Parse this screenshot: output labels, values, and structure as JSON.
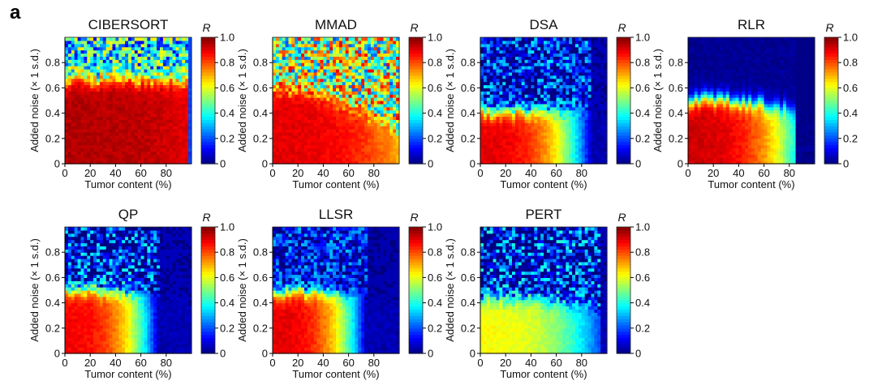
{
  "figure": {
    "panel_label": "a"
  },
  "colors": {
    "jet": [
      "#00007f",
      "#0000ff",
      "#007fff",
      "#00ffff",
      "#7fff7f",
      "#ffff00",
      "#ff7f00",
      "#ff0000",
      "#7f0000"
    ]
  },
  "chart_data": [
    {
      "type": "heatmap",
      "title": "CIBERSORT",
      "xlabel": "Tumor content (%)",
      "ylabel": "Added noise (× 1 s.d.)",
      "xlim": [
        0,
        100
      ],
      "ylim": [
        0,
        1
      ],
      "xticks": [
        "0",
        "20",
        "40",
        "60",
        "80"
      ],
      "yticks": [
        "0",
        "0.2",
        "0.4",
        "0.6",
        "0.8"
      ],
      "colorbar": {
        "label": "R",
        "range": [
          0,
          1
        ],
        "ticks": [
          "0",
          "0.2",
          "0.4",
          "0.6",
          "0.8",
          "1.0"
        ]
      },
      "pattern": {
        "boundary_noise": 0.67,
        "boundary_slope": 0.0,
        "edge_tumor": 97,
        "high_R": 0.95,
        "high_R_at_max_tumor": 0.9,
        "low_R": 0.38,
        "speckle": 0.28
      }
    },
    {
      "type": "heatmap",
      "title": "MMAD",
      "xlabel": "Tumor content (%)",
      "ylabel": "Added noise (× 1 s.d.)",
      "xlim": [
        0,
        100
      ],
      "ylim": [
        0,
        1
      ],
      "xticks": [
        "0",
        "20",
        "40",
        "60",
        "80"
      ],
      "yticks": [
        "0",
        "0.2",
        "0.4",
        "0.6",
        "0.8"
      ],
      "colorbar": {
        "label": "R",
        "range": [
          0,
          1
        ],
        "ticks": [
          "0",
          "0.2",
          "0.4",
          "0.6",
          "0.8",
          "1.0"
        ]
      },
      "pattern": {
        "boundary_noise": 0.6,
        "boundary_slope": -0.35,
        "edge_tumor": 100,
        "high_R": 0.9,
        "high_R_at_max_tumor": 0.7,
        "low_R": 0.55,
        "speckle": 0.35
      }
    },
    {
      "type": "heatmap",
      "title": "DSA",
      "xlabel": "Tumor content (%)",
      "ylabel": "Added noise (× 1 s.d.)",
      "xlim": [
        0,
        100
      ],
      "ylim": [
        0,
        1
      ],
      "xticks": [
        "0",
        "20",
        "40",
        "60",
        "80"
      ],
      "yticks": [
        "0",
        "0.2",
        "0.4",
        "0.6",
        "0.8"
      ],
      "colorbar": {
        "label": "R",
        "range": [
          0,
          1
        ],
        "ticks": [
          "0",
          "0.2",
          "0.4",
          "0.6",
          "0.8",
          "1.0"
        ]
      },
      "pattern": {
        "boundary_noise": 0.42,
        "boundary_slope": 0.0,
        "edge_tumor": 88,
        "high_R": 0.9,
        "high_R_at_max_tumor": 0.05,
        "low_R": 0.12,
        "speckle": 0.25
      }
    },
    {
      "type": "heatmap",
      "title": "RLR",
      "xlabel": "Tumor content (%)",
      "ylabel": "Added noise (× 1 s.d.)",
      "xlim": [
        0,
        100
      ],
      "ylim": [
        0,
        1
      ],
      "xticks": [
        "0",
        "20",
        "40",
        "60",
        "80"
      ],
      "yticks": [
        "0",
        "0.2",
        "0.4",
        "0.6",
        "0.8"
      ],
      "colorbar": {
        "label": "R",
        "range": [
          0,
          1
        ],
        "ticks": [
          "0",
          "0.2",
          "0.4",
          "0.6",
          "0.8",
          "1.0"
        ]
      },
      "pattern": {
        "boundary_noise": 0.52,
        "boundary_slope": -0.12,
        "edge_tumor": 86,
        "high_R": 0.92,
        "high_R_at_max_tumor": 0.35,
        "low_R": 0.02,
        "speckle": 0.02
      }
    },
    {
      "type": "heatmap",
      "title": "QP",
      "xlabel": "Tumor content (%)",
      "ylabel": "Added noise (× 1 s.d.)",
      "xlim": [
        0,
        100
      ],
      "ylim": [
        0,
        1
      ],
      "xticks": [
        "0",
        "20",
        "40",
        "60",
        "80"
      ],
      "yticks": [
        "0",
        "0.2",
        "0.4",
        "0.6",
        "0.8"
      ],
      "colorbar": {
        "label": "R",
        "range": [
          0,
          1
        ],
        "ticks": [
          "0",
          "0.2",
          "0.4",
          "0.6",
          "0.8",
          "1.0"
        ]
      },
      "pattern": {
        "boundary_noise": 0.5,
        "boundary_slope": -0.05,
        "edge_tumor": 74,
        "high_R": 0.88,
        "high_R_at_max_tumor": 0.05,
        "low_R": 0.12,
        "speckle": 0.28
      }
    },
    {
      "type": "heatmap",
      "title": "LLSR",
      "xlabel": "Tumor content (%)",
      "ylabel": "Added noise (× 1 s.d.)",
      "xlim": [
        0,
        100
      ],
      "ylim": [
        0,
        1
      ],
      "xticks": [
        "0",
        "20",
        "40",
        "60",
        "80"
      ],
      "yticks": [
        "0",
        "0.2",
        "0.4",
        "0.6",
        "0.8"
      ],
      "colorbar": {
        "label": "R",
        "range": [
          0,
          1
        ],
        "ticks": [
          "0",
          "0.2",
          "0.4",
          "0.6",
          "0.8",
          "1.0"
        ]
      },
      "pattern": {
        "boundary_noise": 0.5,
        "boundary_slope": -0.05,
        "edge_tumor": 74,
        "high_R": 0.9,
        "high_R_at_max_tumor": 0.05,
        "low_R": 0.1,
        "speckle": 0.22
      }
    },
    {
      "type": "heatmap",
      "title": "PERT",
      "xlabel": "Tumor content (%)",
      "ylabel": "Added noise (× 1 s.d.)",
      "xlim": [
        0,
        100
      ],
      "ylim": [
        0,
        1
      ],
      "xticks": [
        "0",
        "20",
        "40",
        "60",
        "80"
      ],
      "yticks": [
        "0",
        "0.2",
        "0.4",
        "0.6",
        "0.8"
      ],
      "colorbar": {
        "label": "R",
        "range": [
          0,
          1
        ],
        "ticks": [
          "0",
          "0.2",
          "0.4",
          "0.6",
          "0.8",
          "1.0"
        ]
      },
      "pattern": {
        "boundary_noise": 0.45,
        "boundary_slope": -0.08,
        "edge_tumor": 95,
        "high_R": 0.62,
        "high_R_at_max_tumor": 0.18,
        "low_R": 0.12,
        "speckle": 0.3
      }
    }
  ]
}
